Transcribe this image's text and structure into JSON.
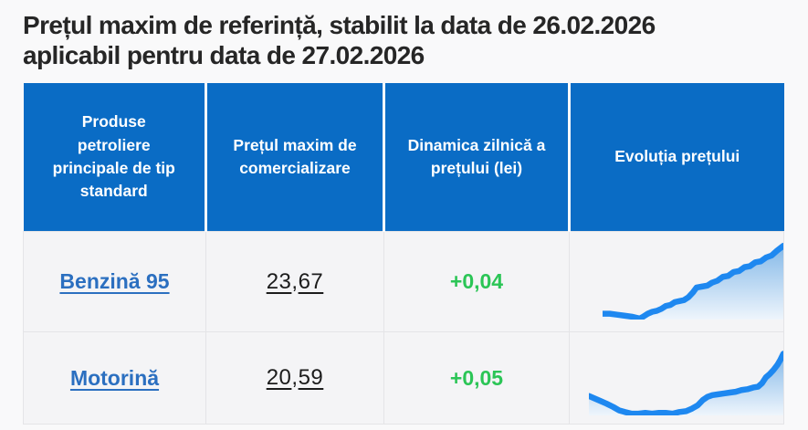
{
  "page": {
    "background": "#f9f9fa"
  },
  "title": {
    "line1": "Prețul maxim de referință, stabilit la data de 26.02.2026",
    "line2": "aplicabil pentru data de 27.02.2026"
  },
  "table": {
    "headers": [
      {
        "label": "Produse petroliere principale de tip standard",
        "lines": [
          "Produse",
          "petroliere",
          "principale de tip",
          "standard"
        ]
      },
      {
        "label": "Prețul maxim de comercializare",
        "lines": [
          "Prețul maxim de",
          "comercializare"
        ]
      },
      {
        "label": "Dinamica zilnică a prețului (lei)",
        "lines": [
          "Dinamica zilnică a",
          "prețului (lei)"
        ]
      },
      {
        "label": "Evoluția prețului",
        "lines": [
          "Evoluția prețului"
        ]
      }
    ],
    "rows": [
      {
        "product": "Benzină 95",
        "price_whole": "23",
        "decimal_separator": ",",
        "price_decimal": "67",
        "price_display": "23,67",
        "daily_change": "+0,04",
        "sparkline": [
          [
            0,
            74
          ],
          [
            8,
            74
          ],
          [
            16,
            75
          ],
          [
            24,
            76
          ],
          [
            32,
            77
          ],
          [
            41,
            79
          ],
          [
            45,
            77
          ],
          [
            50,
            74
          ],
          [
            55,
            72
          ],
          [
            60,
            71
          ],
          [
            65,
            69
          ],
          [
            70,
            66
          ],
          [
            75,
            65
          ],
          [
            80,
            62
          ],
          [
            85,
            61
          ],
          [
            90,
            60
          ],
          [
            95,
            57
          ],
          [
            100,
            52
          ],
          [
            104,
            47
          ],
          [
            110,
            46
          ],
          [
            116,
            45
          ],
          [
            121,
            42
          ],
          [
            127,
            40
          ],
          [
            133,
            36
          ],
          [
            139,
            35
          ],
          [
            145,
            31
          ],
          [
            151,
            30
          ],
          [
            157,
            26
          ],
          [
            163,
            25
          ],
          [
            169,
            21
          ],
          [
            175,
            20
          ],
          [
            181,
            16
          ],
          [
            187,
            14
          ],
          [
            193,
            9
          ],
          [
            200,
            4
          ]
        ]
      },
      {
        "product": "Motorină",
        "price_whole": "20",
        "decimal_separator": ",",
        "price_decimal": "59",
        "price_display": "20,59",
        "daily_change": "+0,05",
        "sparkline": [
          [
            0,
            57
          ],
          [
            6,
            60
          ],
          [
            12,
            63
          ],
          [
            18,
            66
          ],
          [
            25,
            70
          ],
          [
            31,
            74
          ],
          [
            37,
            76
          ],
          [
            44,
            78
          ],
          [
            51,
            78
          ],
          [
            58,
            77
          ],
          [
            65,
            78
          ],
          [
            72,
            77
          ],
          [
            79,
            77
          ],
          [
            86,
            78
          ],
          [
            93,
            76
          ],
          [
            100,
            75
          ],
          [
            106,
            72
          ],
          [
            112,
            68
          ],
          [
            117,
            62
          ],
          [
            122,
            58
          ],
          [
            127,
            56
          ],
          [
            133,
            55
          ],
          [
            139,
            54
          ],
          [
            145,
            53
          ],
          [
            151,
            52
          ],
          [
            157,
            50
          ],
          [
            163,
            49
          ],
          [
            169,
            47
          ],
          [
            174,
            46
          ],
          [
            178,
            42
          ],
          [
            182,
            35
          ],
          [
            186,
            31
          ],
          [
            190,
            26
          ],
          [
            194,
            20
          ],
          [
            197,
            14
          ],
          [
            200,
            7
          ]
        ]
      }
    ],
    "colors": {
      "header_background": "#0a6cc5",
      "header_text": "#ffffff",
      "product_link": "#2b6fc0",
      "price_text": "#1c1c1c",
      "change_positive": "#2bc556",
      "spark_line": "#1e88f0",
      "spark_fill_top": "#85b9e8",
      "spark_fill_bottom": "#eef5fc"
    }
  }
}
